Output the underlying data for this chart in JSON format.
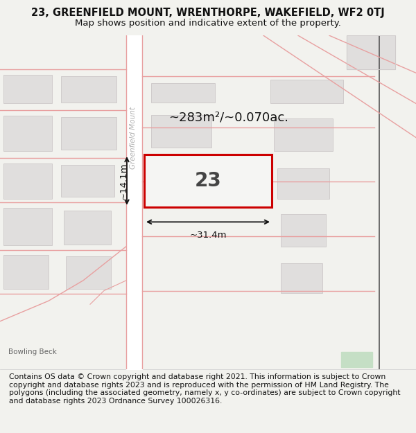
{
  "title": "23, GREENFIELD MOUNT, WRENTHORPE, WAKEFIELD, WF2 0TJ",
  "subtitle": "Map shows position and indicative extent of the property.",
  "footer": "Contains OS data © Crown copyright and database right 2021. This information is subject to Crown copyright and database rights 2023 and is reproduced with the permission of HM Land Registry. The polygons (including the associated geometry, namely x, y co-ordinates) are subject to Crown copyright and database rights 2023 Ordnance Survey 100026316.",
  "bg_color": "#f2f2ee",
  "map_bg": "#f2f2ee",
  "footer_bg": "#ffffff",
  "title_fontsize": 10.5,
  "subtitle_fontsize": 9.5,
  "footer_fontsize": 7.8,
  "property_label": "23",
  "area_label": "~283m²/~0.070ac.",
  "width_label": "~31.4m",
  "height_label": "~14.1m",
  "street_label": "Greenfield Mount",
  "bowling_beck_label": "Bowling Beck",
  "road_color": "#e8a0a0",
  "building_fill": "#e0dedd",
  "building_edge": "#d0cccc",
  "property_fill": "#f5f5f3",
  "property_edge": "#cc0000",
  "dim_color": "#111111",
  "street_color": "#b0b0b0",
  "dark_road_color": "#555555"
}
